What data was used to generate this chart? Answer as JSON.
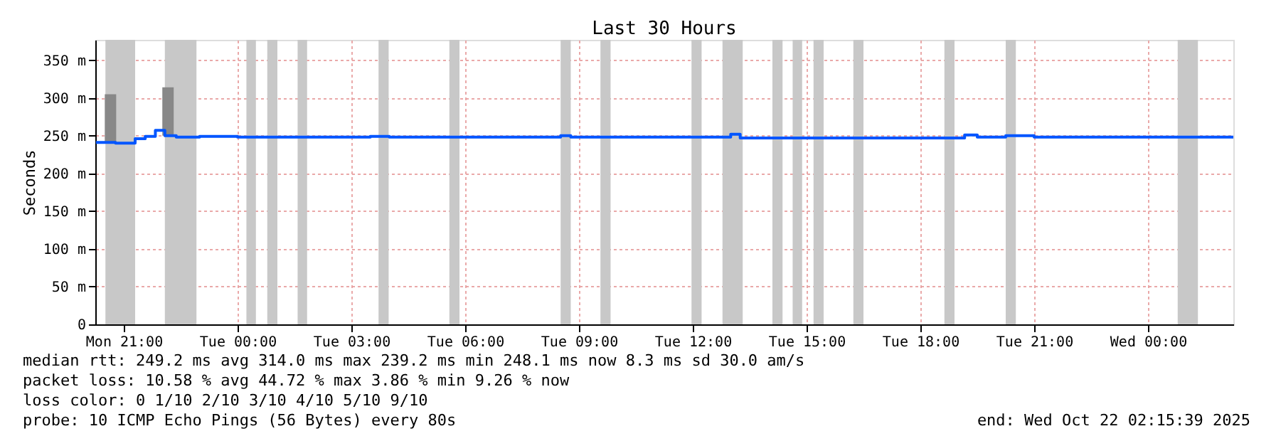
{
  "chart_data": {
    "type": "step",
    "title": "Last 30 Hours",
    "ylabel": "Seconds",
    "xlim": [
      "2025-10-20T20:15",
      "2025-10-22T02:15"
    ],
    "xticks": [
      {
        "value": "2025-10-20T21:00",
        "label": "Mon 21:00"
      },
      {
        "value": "2025-10-21T00:00",
        "label": "Tue 00:00"
      },
      {
        "value": "2025-10-21T03:00",
        "label": "Tue 03:00"
      },
      {
        "value": "2025-10-21T06:00",
        "label": "Tue 06:00"
      },
      {
        "value": "2025-10-21T09:00",
        "label": "Tue 09:00"
      },
      {
        "value": "2025-10-21T12:00",
        "label": "Tue 12:00"
      },
      {
        "value": "2025-10-21T15:00",
        "label": "Tue 15:00"
      },
      {
        "value": "2025-10-21T18:00",
        "label": "Tue 18:00"
      },
      {
        "value": "2025-10-21T21:00",
        "label": "Tue 21:00"
      },
      {
        "value": "2025-10-22T00:00",
        "label": "Wed 00:00"
      }
    ],
    "ylim": [
      0,
      377
    ],
    "yticks": [
      0,
      {
        "value": 50,
        "label": "50 m"
      },
      {
        "value": 100,
        "label": "100 m"
      },
      {
        "value": 150,
        "label": "150 m"
      },
      {
        "value": 200,
        "label": "200 m"
      },
      {
        "value": 250,
        "label": "250 m"
      },
      {
        "value": 300,
        "label": "300 m"
      },
      {
        "value": 350,
        "label": "350 m"
      }
    ],
    "grid": true,
    "series": [
      {
        "type": "bar",
        "color": "#888888",
        "x": [
          "2025-10-20T20:39",
          "2025-10-20T22:10"
        ],
        "base": [
          240,
          250
        ],
        "values": [
          65,
          64
        ]
      },
      {
        "color": "#0055ff",
        "x": [
          "2025-10-20T20:16",
          "2025-10-20T20:47",
          "2025-10-20T21:18",
          "2025-10-20T21:34",
          "2025-10-20T21:50",
          "2025-10-20T22:05",
          "2025-10-20T22:23",
          "2025-10-20T23:00",
          "2025-10-21T00:00",
          "2025-10-21T03:00",
          "2025-10-21T03:30",
          "2025-10-21T04:00",
          "2025-10-21T08:31",
          "2025-10-21T08:47",
          "2025-10-21T13:00",
          "2025-10-21T13:15",
          "2025-10-21T19:10",
          "2025-10-21T19:30",
          "2025-10-21T20:15",
          "2025-10-21T21:00",
          "2025-10-22T02:15"
        ],
        "values": [
          241,
          240,
          246,
          249,
          257,
          250,
          248,
          249,
          248,
          248,
          249,
          248,
          250,
          248,
          252,
          247,
          251,
          248,
          250,
          248,
          248
        ]
      }
    ],
    "bands": [
      {
        "axis": "x",
        "from": "2025-10-20T20:31",
        "to": "2025-10-20T21:18",
        "color": "#c8c8c8"
      },
      {
        "axis": "x",
        "from": "2025-10-20T22:05",
        "to": "2025-10-20T22:55",
        "color": "#c8c8c8"
      },
      {
        "axis": "x",
        "from": "2025-10-21T00:14",
        "to": "2025-10-21T00:29",
        "color": "#c8c8c8"
      },
      {
        "axis": "x",
        "from": "2025-10-21T00:47",
        "to": "2025-10-21T01:03",
        "color": "#c8c8c8"
      },
      {
        "axis": "x",
        "from": "2025-10-21T01:35",
        "to": "2025-10-21T01:50",
        "color": "#c8c8c8"
      },
      {
        "axis": "x",
        "from": "2025-10-21T03:43",
        "to": "2025-10-21T03:59",
        "color": "#c8c8c8"
      },
      {
        "axis": "x",
        "from": "2025-10-21T05:35",
        "to": "2025-10-21T05:51",
        "color": "#c8c8c8"
      },
      {
        "axis": "x",
        "from": "2025-10-21T08:31",
        "to": "2025-10-21T08:47",
        "color": "#c8c8c8"
      },
      {
        "axis": "x",
        "from": "2025-10-21T09:34",
        "to": "2025-10-21T09:50",
        "color": "#c8c8c8"
      },
      {
        "axis": "x",
        "from": "2025-10-21T11:58",
        "to": "2025-10-21T12:14",
        "color": "#c8c8c8"
      },
      {
        "axis": "x",
        "from": "2025-10-21T12:47",
        "to": "2025-10-21T13:19",
        "color": "#c8c8c8"
      },
      {
        "axis": "x",
        "from": "2025-10-21T14:06",
        "to": "2025-10-21T14:22",
        "color": "#c8c8c8"
      },
      {
        "axis": "x",
        "from": "2025-10-21T14:38",
        "to": "2025-10-21T14:53",
        "color": "#c8c8c8"
      },
      {
        "axis": "x",
        "from": "2025-10-21T15:11",
        "to": "2025-10-21T15:27",
        "color": "#c8c8c8"
      },
      {
        "axis": "x",
        "from": "2025-10-21T16:14",
        "to": "2025-10-21T16:30",
        "color": "#c8c8c8"
      },
      {
        "axis": "x",
        "from": "2025-10-21T18:38",
        "to": "2025-10-21T18:54",
        "color": "#c8c8c8"
      },
      {
        "axis": "x",
        "from": "2025-10-21T20:15",
        "to": "2025-10-21T20:31",
        "color": "#c8c8c8"
      },
      {
        "axis": "x",
        "from": "2025-10-22T00:47",
        "to": "2025-10-22T01:19",
        "color": "#c8c8c8"
      }
    ],
    "annotations": [
      "median rtt:  249.2 ms avg  314.0 ms max  239.2 ms min  248.1 ms now  8.3 ms sd  30.0   am/s",
      "packet loss: 10.58 % avg  44.72 % max  3.86 % min  9.26 % now",
      "loss color:  0  1/10  2/10  3/10  4/10  5/10  9/10",
      "probe:       10 ICMP Echo Pings (56 Bytes) every 80s",
      "end: Wed Oct 22 02:15:39 2025"
    ]
  }
}
